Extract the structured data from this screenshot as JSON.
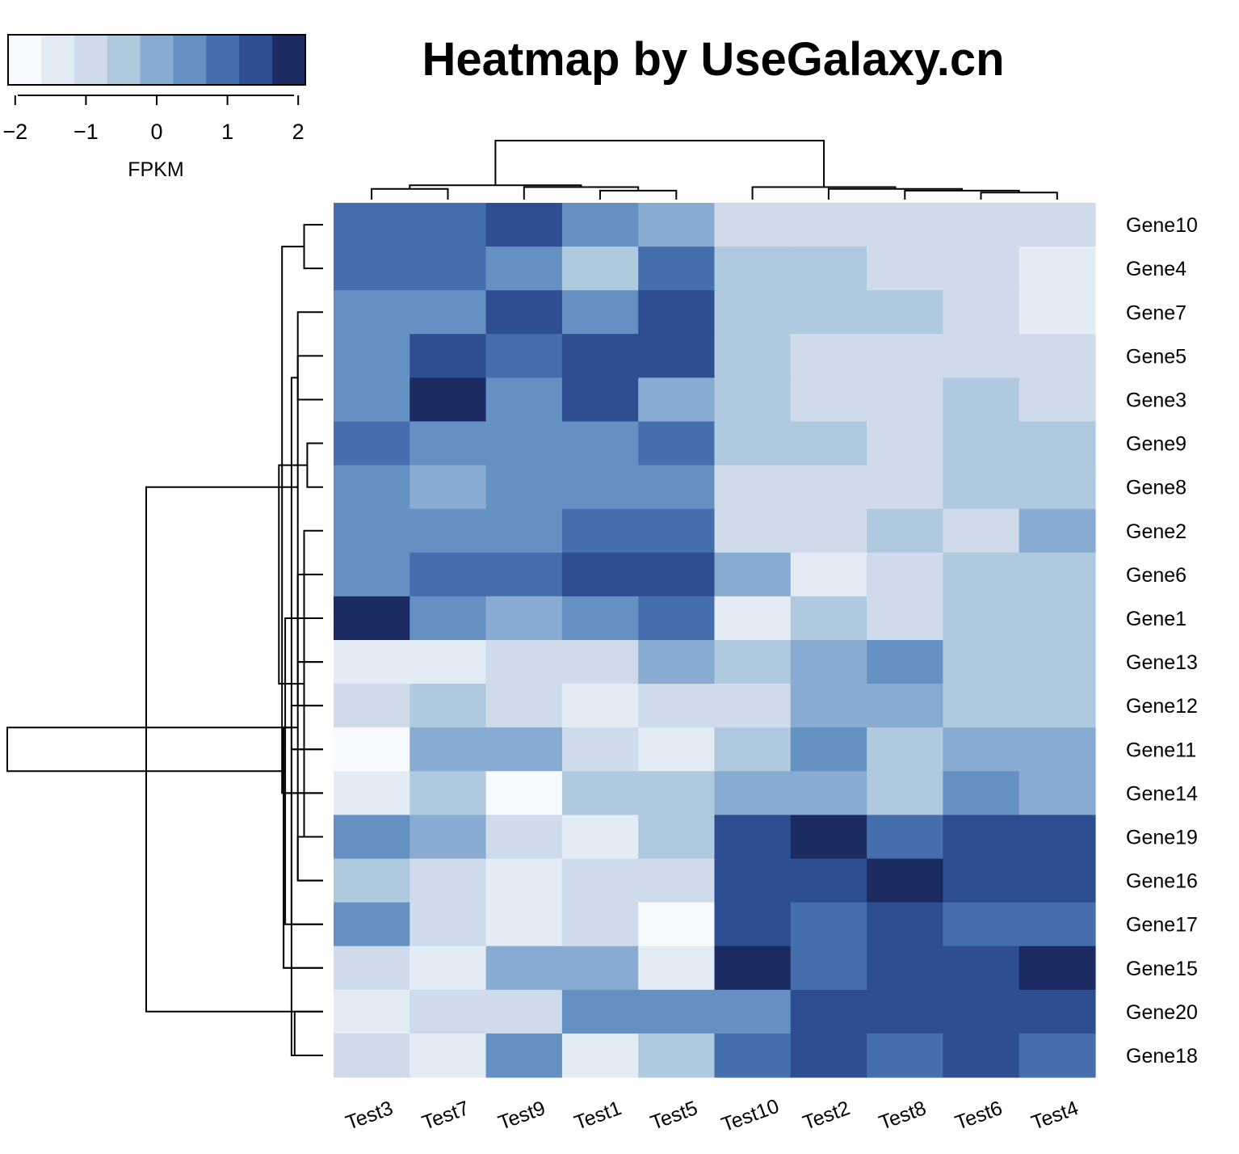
{
  "chart_data": {
    "type": "heatmap",
    "title": "Heatmap by UseGalaxy.cn",
    "colorbar": {
      "label": "FPKM",
      "ticks": [
        "−2",
        "−1",
        "0",
        "1",
        "2"
      ],
      "tick_values": [
        -2,
        -1,
        0,
        1,
        2
      ],
      "range": [
        -2.1,
        2.1
      ],
      "colors": [
        "#f7fbff",
        "#e3ebf5",
        "#cfdbeb",
        "#afc9de",
        "#88acd1",
        "#6590c2",
        "#456fac",
        "#2d4e90",
        "#1c2c62"
      ]
    },
    "columns": [
      "Test3",
      "Test7",
      "Test9",
      "Test1",
      "Test5",
      "Test10",
      "Test2",
      "Test8",
      "Test6",
      "Test4"
    ],
    "rows": [
      "Gene10",
      "Gene4",
      "Gene7",
      "Gene5",
      "Gene3",
      "Gene9",
      "Gene8",
      "Gene2",
      "Gene6",
      "Gene1",
      "Gene13",
      "Gene12",
      "Gene11",
      "Gene14",
      "Gene19",
      "Gene16",
      "Gene17",
      "Gene15",
      "Gene20",
      "Gene18"
    ],
    "values": [
      [
        1.0,
        1.0,
        1.4,
        0.6,
        0.2,
        -0.9,
        -0.9,
        -0.9,
        -0.9,
        -0.9
      ],
      [
        1.0,
        1.0,
        0.6,
        -0.5,
        1.0,
        -0.5,
        -0.5,
        -0.9,
        -0.9,
        -1.4
      ],
      [
        0.6,
        0.6,
        1.4,
        0.6,
        1.4,
        -0.5,
        -0.5,
        -0.5,
        -0.9,
        -1.4
      ],
      [
        0.6,
        1.4,
        1.0,
        1.4,
        1.4,
        -0.5,
        -0.9,
        -0.9,
        -0.9,
        -0.9
      ],
      [
        0.6,
        2.0,
        0.6,
        1.4,
        0.2,
        -0.5,
        -0.9,
        -0.9,
        -0.5,
        -0.9
      ],
      [
        1.0,
        0.6,
        0.6,
        0.6,
        1.0,
        -0.5,
        -0.5,
        -0.9,
        -0.5,
        -0.5
      ],
      [
        0.6,
        0.2,
        0.6,
        0.6,
        0.6,
        -0.9,
        -0.9,
        -0.9,
        -0.5,
        -0.5
      ],
      [
        0.6,
        0.6,
        0.6,
        1.0,
        1.0,
        -0.9,
        -0.9,
        -0.5,
        -0.9,
        0.2
      ],
      [
        0.6,
        1.0,
        1.0,
        1.4,
        1.4,
        0.2,
        -1.4,
        -0.9,
        -0.5,
        -0.5
      ],
      [
        2.0,
        0.6,
        0.2,
        0.6,
        1.0,
        -1.4,
        -0.5,
        -0.9,
        -0.5,
        -0.5
      ],
      [
        -1.4,
        -1.4,
        -0.9,
        -0.9,
        0.2,
        -0.5,
        0.2,
        0.6,
        -0.5,
        -0.5
      ],
      [
        -0.9,
        -0.5,
        -0.9,
        -1.4,
        -0.9,
        -0.9,
        0.2,
        0.2,
        -0.5,
        -0.5
      ],
      [
        -2.0,
        0.2,
        0.2,
        -0.9,
        -1.4,
        -0.5,
        0.6,
        -0.5,
        0.2,
        0.2
      ],
      [
        -1.4,
        -0.5,
        -2.0,
        -0.5,
        -0.5,
        0.2,
        0.2,
        -0.5,
        0.6,
        0.2
      ],
      [
        0.6,
        0.2,
        -0.9,
        -1.4,
        -0.5,
        1.4,
        2.0,
        1.0,
        1.4,
        1.4
      ],
      [
        -0.5,
        -0.9,
        -1.4,
        -0.9,
        -0.9,
        1.4,
        1.4,
        2.0,
        1.4,
        1.4
      ],
      [
        0.6,
        -0.9,
        -1.4,
        -0.9,
        -2.0,
        1.4,
        1.0,
        1.4,
        1.0,
        1.0
      ],
      [
        -0.9,
        -1.4,
        0.2,
        0.2,
        -1.4,
        2.0,
        1.0,
        1.4,
        1.4,
        2.0
      ],
      [
        -1.4,
        -0.9,
        -0.9,
        0.6,
        0.6,
        0.6,
        1.4,
        1.4,
        1.4,
        1.4
      ],
      [
        -0.9,
        -1.4,
        0.6,
        -1.4,
        -0.5,
        1.0,
        1.4,
        1.0,
        1.4,
        1.0
      ]
    ],
    "row_dendrogram": {
      "merges": [
        [
          0,
          1,
          0.06
        ],
        [
          10,
          2,
          0.08
        ],
        [
          3,
          4,
          0.08
        ],
        [
          11,
          12,
          0.1
        ],
        [
          5,
          6,
          0.05
        ],
        [
          14,
          7,
          0.06
        ],
        [
          15,
          8,
          0.08
        ],
        [
          16,
          9,
          0.12
        ],
        [
          13,
          17,
          0.125
        ],
        [
          10,
          11,
          0.08
        ],
        [
          19,
          12,
          0.1
        ],
        [
          20,
          13,
          0.13
        ],
        [
          14,
          15,
          0.08
        ],
        [
          22,
          16,
          0.1
        ],
        [
          23,
          17,
          0.125
        ],
        [
          18,
          19,
          0.09
        ],
        [
          24,
          25,
          0.14
        ],
        [
          18,
          21,
          0.56
        ],
        [
          27,
          26,
          1.0
        ]
      ]
    },
    "col_dendrogram": {
      "merges": [
        [
          0,
          1,
          0.06
        ],
        [
          3,
          4,
          0.05
        ],
        [
          2,
          11,
          0.07
        ],
        [
          10,
          12,
          0.08
        ],
        [
          8,
          9,
          0.04
        ],
        [
          7,
          14,
          0.05
        ],
        [
          6,
          15,
          0.06
        ],
        [
          5,
          16,
          0.07
        ],
        [
          13,
          17,
          0.33
        ]
      ]
    }
  }
}
